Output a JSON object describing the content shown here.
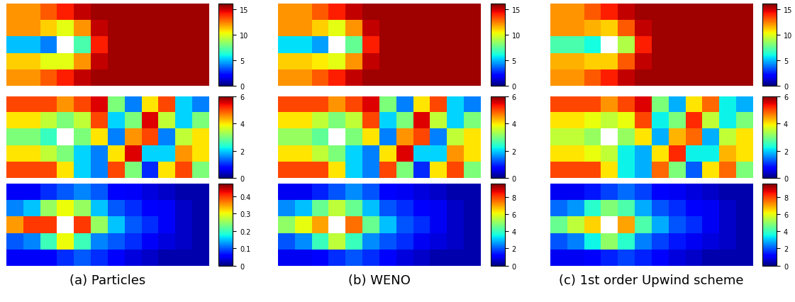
{
  "chart_data": [
    {
      "type": "heatmap",
      "tick_labels": false,
      "cells": [
        [
          12,
          12,
          13,
          14,
          15,
          15.5,
          15.5,
          15.5,
          15.5,
          15.5,
          15.5,
          15.5
        ],
        [
          12,
          12,
          11,
          10,
          12,
          15,
          15.5,
          15.5,
          15.5,
          15.5,
          15.5,
          15.5
        ],
        [
          5,
          5,
          4,
          null,
          7,
          14,
          15.5,
          15.5,
          15.5,
          15.5,
          15.5,
          15.5
        ],
        [
          11,
          11,
          10,
          10,
          12,
          15,
          15.5,
          15.5,
          15.5,
          15.5,
          15.5,
          15.5
        ],
        [
          12,
          12,
          13,
          14,
          15,
          15.5,
          15.5,
          15.5,
          15.5,
          15.5,
          15.5,
          15.5
        ]
      ],
      "colorbar_range": [
        0,
        16
      ],
      "colorbar_ticks": [
        0,
        5,
        10,
        15
      ]
    },
    {
      "type": "heatmap",
      "tick_labels": false,
      "cells": [
        [
          5,
          5,
          5,
          4.5,
          5,
          5.5,
          3,
          1.5,
          4,
          5,
          2,
          1.5
        ],
        [
          4,
          4,
          3.5,
          3,
          3.5,
          5,
          2,
          3,
          5.5,
          3.5,
          2,
          3
        ],
        [
          3,
          3,
          2.5,
          null,
          3,
          4,
          1.5,
          4.5,
          5,
          1.5,
          3.5,
          4
        ],
        [
          4,
          4,
          3.5,
          3,
          2,
          1.5,
          4,
          5.5,
          2,
          2,
          4.5,
          4
        ],
        [
          5,
          5,
          5,
          4,
          2,
          1.5,
          5,
          3,
          1,
          4,
          5,
          3
        ]
      ],
      "colorbar_range": [
        0,
        6
      ],
      "colorbar_ticks": [
        0,
        2,
        4,
        6
      ]
    },
    {
      "type": "heatmap",
      "tick_labels": false,
      "xlabel": "(a) Particles",
      "cells": [
        [
          0.05,
          0.05,
          0.08,
          0.1,
          0.12,
          0.1,
          0.06,
          0.05,
          0.04,
          0.03,
          0.02,
          0.02
        ],
        [
          0.12,
          0.15,
          0.25,
          0.3,
          0.25,
          0.15,
          0.1,
          0.08,
          0.06,
          0.05,
          0.03,
          0.02
        ],
        [
          0.35,
          0.4,
          0.4,
          null,
          0.4,
          0.25,
          0.15,
          0.1,
          0.08,
          0.05,
          0.03,
          0.02
        ],
        [
          0.1,
          0.12,
          0.2,
          0.3,
          0.2,
          0.12,
          0.1,
          0.08,
          0.05,
          0.04,
          0.03,
          0.02
        ],
        [
          0.05,
          0.05,
          0.06,
          0.08,
          0.1,
          0.08,
          0.06,
          0.04,
          0.03,
          0.02,
          0.02,
          0.02
        ]
      ],
      "colorbar_range": [
        0,
        0.47
      ],
      "colorbar_ticks": [
        0,
        0.1,
        0.2,
        0.3,
        0.4
      ]
    },
    {
      "type": "heatmap",
      "tick_labels": false,
      "cells": [
        [
          12,
          12,
          13,
          14,
          15,
          15.5,
          15.5,
          15.5,
          15.5,
          15.5,
          15.5,
          15.5
        ],
        [
          12,
          12,
          11,
          10,
          12,
          15,
          15.5,
          15.5,
          15.5,
          15.5,
          15.5,
          15.5
        ],
        [
          5.5,
          5.5,
          4.5,
          null,
          7.5,
          14,
          15.5,
          15.5,
          15.5,
          15.5,
          15.5,
          15.5
        ],
        [
          11,
          11,
          10.5,
          10,
          12,
          15,
          15.5,
          15.5,
          15.5,
          15.5,
          15.5,
          15.5
        ],
        [
          12,
          12,
          13,
          14,
          15,
          15.5,
          15.5,
          15.5,
          15.5,
          15.5,
          15.5,
          15.5
        ]
      ],
      "colorbar_range": [
        0,
        16
      ],
      "colorbar_ticks": [
        0,
        5,
        10,
        15
      ]
    },
    {
      "type": "heatmap",
      "tick_labels": false,
      "cells": [
        [
          5,
          5,
          5,
          4.5,
          5,
          5.5,
          3,
          1.5,
          4,
          5,
          2,
          1.5
        ],
        [
          4,
          4,
          3.5,
          3,
          3.5,
          5,
          2,
          3,
          5.5,
          3.5,
          2,
          3
        ],
        [
          3.2,
          3.2,
          2.8,
          null,
          3,
          4,
          1.5,
          4.5,
          5,
          1.5,
          3.5,
          4
        ],
        [
          4,
          4,
          3.5,
          3,
          2,
          1.5,
          4,
          5.5,
          2,
          2,
          4.5,
          4
        ],
        [
          5,
          5,
          5,
          4,
          2,
          1.5,
          5,
          3,
          1,
          4,
          5,
          3
        ]
      ],
      "colorbar_range": [
        0,
        6
      ],
      "colorbar_ticks": [
        0,
        2,
        4,
        6
      ]
    },
    {
      "type": "heatmap",
      "tick_labels": false,
      "xlabel": "(b) WENO",
      "cells": [
        [
          1,
          1,
          1.5,
          2,
          2.5,
          2,
          1.2,
          1,
          0.8,
          0.6,
          0.4,
          0.4
        ],
        [
          2.5,
          3,
          4.5,
          5.5,
          4.5,
          3,
          2,
          1.6,
          1.2,
          1,
          0.6,
          0.4
        ],
        [
          5,
          6,
          7,
          null,
          7.5,
          4.5,
          3,
          2,
          1.6,
          1,
          0.6,
          0.4
        ],
        [
          2,
          2.5,
          4,
          5.5,
          4,
          2.5,
          2,
          1.6,
          1,
          0.8,
          0.6,
          0.4
        ],
        [
          1,
          1,
          1.2,
          1.6,
          2,
          1.6,
          1.2,
          0.8,
          0.6,
          0.4,
          0.4,
          0.4
        ]
      ],
      "colorbar_range": [
        0,
        9.5
      ],
      "colorbar_ticks": [
        0,
        2,
        4,
        6,
        8
      ]
    },
    {
      "type": "heatmap",
      "tick_labels": false,
      "cells": [
        [
          12,
          12,
          13,
          14,
          15,
          15.5,
          15.5,
          15.5,
          15.5,
          15.5,
          15.5,
          15.5
        ],
        [
          12,
          12,
          11.5,
          11,
          13,
          15,
          15.5,
          15.5,
          15.5,
          15.5,
          15.5,
          15.5
        ],
        [
          7,
          7,
          6,
          null,
          9,
          14,
          15.5,
          15.5,
          15.5,
          15.5,
          15.5,
          15.5
        ],
        [
          11.5,
          11.5,
          11,
          11,
          13,
          15,
          15.5,
          15.5,
          15.5,
          15.5,
          15.5,
          15.5
        ],
        [
          12,
          12,
          13,
          14,
          15,
          15.5,
          15.5,
          15.5,
          15.5,
          15.5,
          15.5,
          15.5
        ]
      ],
      "colorbar_range": [
        0,
        16
      ],
      "colorbar_ticks": [
        0,
        5,
        10,
        15
      ]
    },
    {
      "type": "heatmap",
      "tick_labels": false,
      "cells": [
        [
          5,
          5,
          5,
          4.5,
          5,
          5.5,
          3,
          1.8,
          4,
          4.8,
          2.2,
          1.8
        ],
        [
          4,
          4,
          3.8,
          3.5,
          3.8,
          5,
          2.2,
          3,
          5.2,
          3.5,
          2.2,
          3
        ],
        [
          3.5,
          3.5,
          3.2,
          null,
          3.2,
          4,
          1.8,
          4.3,
          4.8,
          1.8,
          3.5,
          4
        ],
        [
          4,
          4,
          3.8,
          3.5,
          2.2,
          1.8,
          4,
          5.2,
          2.2,
          2.2,
          4.3,
          4
        ],
        [
          5,
          5,
          5,
          4,
          2.2,
          1.8,
          4.8,
          3,
          1.3,
          4,
          4.8,
          3
        ]
      ],
      "colorbar_range": [
        0,
        6
      ],
      "colorbar_ticks": [
        0,
        2,
        4,
        6
      ]
    },
    {
      "type": "heatmap",
      "tick_labels": false,
      "xlabel": "(c) 1st order Upwind scheme",
      "cells": [
        [
          1,
          1,
          1.4,
          1.8,
          2.2,
          1.8,
          1.2,
          1,
          0.8,
          0.6,
          0.4,
          0.4
        ],
        [
          2.2,
          2.6,
          3.8,
          4.8,
          4.2,
          2.8,
          2,
          1.6,
          1.2,
          1,
          0.6,
          0.4
        ],
        [
          4.5,
          5.5,
          6.5,
          null,
          7,
          4.2,
          2.8,
          2,
          1.6,
          1,
          0.6,
          0.4
        ],
        [
          2,
          2.4,
          3.5,
          5,
          3.8,
          2.4,
          1.8,
          1.4,
          1,
          0.8,
          0.6,
          0.4
        ],
        [
          1,
          1,
          1.2,
          1.5,
          1.8,
          1.5,
          1.2,
          0.8,
          0.6,
          0.4,
          0.4,
          0.4
        ]
      ],
      "colorbar_range": [
        0,
        9.5
      ],
      "colorbar_ticks": [
        0,
        2,
        4,
        6,
        8
      ]
    }
  ]
}
